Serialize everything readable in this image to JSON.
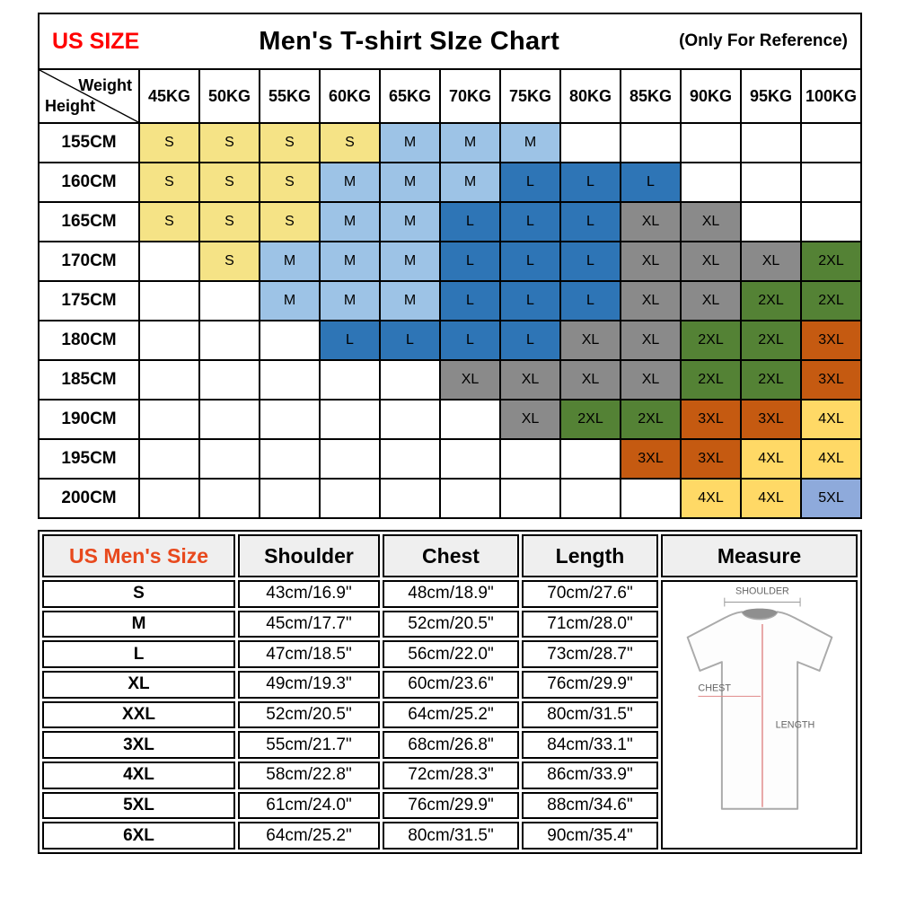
{
  "header": {
    "left_label": "US SIZE",
    "left_label_color": "#FF0000",
    "title": "Men's T-shirt SIze Chart",
    "right_label": "(Only For Reference)"
  },
  "chart_data": [
    {
      "type": "table",
      "title": "Height x Weight to recommended size grid",
      "corner": {
        "top": "Weight",
        "bottom": "Height"
      },
      "col_labels": [
        "45KG",
        "50KG",
        "55KG",
        "60KG",
        "65KG",
        "70KG",
        "75KG",
        "80KG",
        "85KG",
        "90KG",
        "95KG",
        "100KG"
      ],
      "row_labels": [
        "155CM",
        "160CM",
        "165CM",
        "170CM",
        "175CM",
        "180CM",
        "185CM",
        "190CM",
        "195CM",
        "200CM"
      ],
      "values": [
        [
          "S",
          "S",
          "S",
          "S",
          "M",
          "M",
          "M",
          "",
          "",
          "",
          "",
          ""
        ],
        [
          "S",
          "S",
          "S",
          "M",
          "M",
          "M",
          "L",
          "L",
          "L",
          "",
          "",
          ""
        ],
        [
          "S",
          "S",
          "S",
          "M",
          "M",
          "L",
          "L",
          "L",
          "XL",
          "XL",
          "",
          ""
        ],
        [
          "",
          "S",
          "M",
          "M",
          "M",
          "L",
          "L",
          "L",
          "XL",
          "XL",
          "XL",
          "2XL"
        ],
        [
          "",
          "",
          "M",
          "M",
          "M",
          "L",
          "L",
          "L",
          "XL",
          "XL",
          "2XL",
          "2XL"
        ],
        [
          "",
          "",
          "",
          "L",
          "L",
          "L",
          "L",
          "XL",
          "XL",
          "2XL",
          "2XL",
          "3XL"
        ],
        [
          "",
          "",
          "",
          "",
          "",
          "XL",
          "XL",
          "XL",
          "XL",
          "2XL",
          "2XL",
          "3XL"
        ],
        [
          "",
          "",
          "",
          "",
          "",
          "",
          "XL",
          "2XL",
          "2XL",
          "3XL",
          "3XL",
          "4XL"
        ],
        [
          "",
          "",
          "",
          "",
          "",
          "",
          "",
          "",
          "3XL",
          "3XL",
          "4XL",
          "4XL"
        ],
        [
          "",
          "",
          "",
          "",
          "",
          "",
          "",
          "",
          "",
          "4XL",
          "4XL",
          "5XL"
        ]
      ],
      "size_colors": {
        "S": "#F5E386",
        "M": "#9DC3E6",
        "L": "#2E75B6",
        "XL": "#8A8A8A",
        "2XL": "#548235",
        "3XL": "#C55A11",
        "4XL": "#FFD966",
        "5XL": "#8EAADB"
      }
    },
    {
      "type": "table",
      "title": "US Men's Size measurements",
      "headers": [
        "US Men's Size",
        "Shoulder",
        "Chest",
        "Length",
        "Measure"
      ],
      "header_accent_color": "#E8491D",
      "rows": [
        {
          "size": "S",
          "shoulder": "43cm/16.9\"",
          "chest": "48cm/18.9\"",
          "length": "70cm/27.6\""
        },
        {
          "size": "M",
          "shoulder": "45cm/17.7\"",
          "chest": "52cm/20.5\"",
          "length": "71cm/28.0\""
        },
        {
          "size": "L",
          "shoulder": "47cm/18.5\"",
          "chest": "56cm/22.0\"",
          "length": "73cm/28.7\""
        },
        {
          "size": "XL",
          "shoulder": "49cm/19.3\"",
          "chest": "60cm/23.6\"",
          "length": "76cm/29.9\""
        },
        {
          "size": "XXL",
          "shoulder": "52cm/20.5\"",
          "chest": "64cm/25.2\"",
          "length": "80cm/31.5\""
        },
        {
          "size": "3XL",
          "shoulder": "55cm/21.7\"",
          "chest": "68cm/26.8\"",
          "length": "84cm/33.1\""
        },
        {
          "size": "4XL",
          "shoulder": "58cm/22.8\"",
          "chest": "72cm/28.3\"",
          "length": "86cm/33.9\""
        },
        {
          "size": "5XL",
          "shoulder": "61cm/24.0\"",
          "chest": "76cm/29.9\"",
          "length": "88cm/34.6\""
        },
        {
          "size": "6XL",
          "shoulder": "64cm/25.2\"",
          "chest": "80cm/31.5\"",
          "length": "90cm/35.4\""
        }
      ],
      "diagram_labels": {
        "shoulder": "SHOULDER",
        "chest": "CHEST",
        "length": "LENGTH"
      }
    }
  ]
}
